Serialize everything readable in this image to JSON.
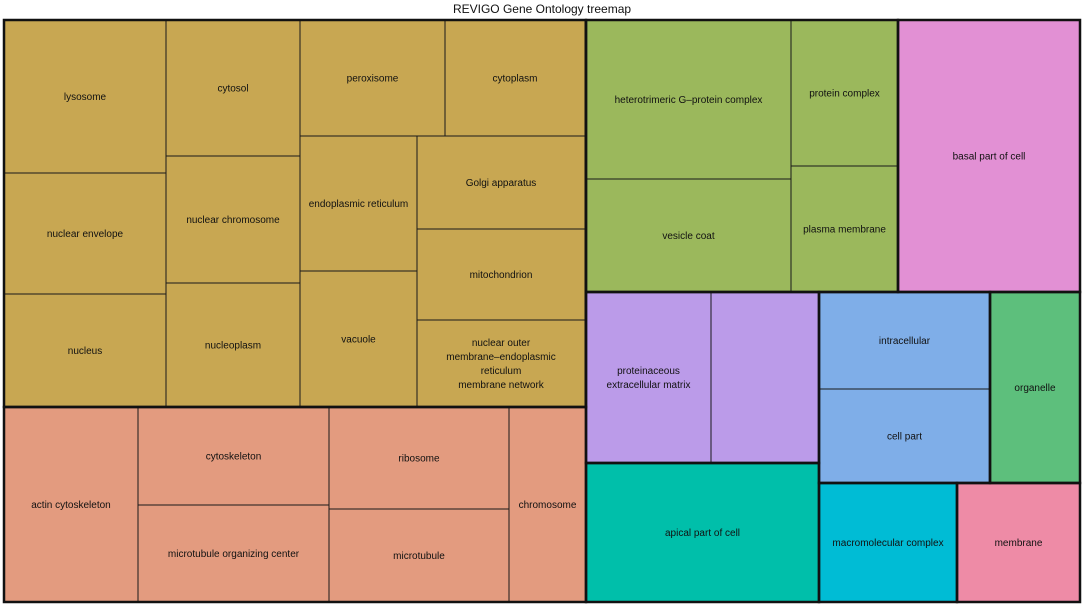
{
  "chart_data": {
    "type": "treemap",
    "title": "REVIGO Gene Ontology treemap",
    "groups": [
      {
        "name": "lysosome",
        "color": "#c8a752",
        "terms": [
          {
            "label": "lysosome",
            "lines": [
              "lysosome"
            ]
          },
          {
            "label": "nuclear envelope",
            "lines": [
              "nuclear envelope"
            ]
          },
          {
            "label": "nucleus",
            "lines": [
              "nucleus"
            ]
          },
          {
            "label": "cytosol",
            "lines": [
              "cytosol"
            ]
          },
          {
            "label": "nuclear chromosome",
            "lines": [
              "nuclear chromosome"
            ]
          },
          {
            "label": "nucleoplasm",
            "lines": [
              "nucleoplasm"
            ]
          },
          {
            "label": "peroxisome",
            "lines": [
              "peroxisome"
            ]
          },
          {
            "label": "cytoplasm",
            "lines": [
              "cytoplasm"
            ]
          },
          {
            "label": "endoplasmic reticulum",
            "lines": [
              "endoplasmic reticulum"
            ]
          },
          {
            "label": "vacuole",
            "lines": [
              "vacuole"
            ]
          },
          {
            "label": "Golgi apparatus",
            "lines": [
              "Golgi apparatus"
            ]
          },
          {
            "label": "mitochondrion",
            "lines": [
              "mitochondrion"
            ]
          },
          {
            "label": "nuclear outer membrane-endoplasmic reticulum membrane network",
            "lines": [
              "nuclear outer",
              "membrane–endoplasmic",
              "reticulum",
              "membrane network"
            ]
          }
        ]
      },
      {
        "name": "actin cytoskeleton",
        "color": "#e39b7f",
        "terms": [
          {
            "label": "actin cytoskeleton",
            "lines": [
              "actin cytoskeleton"
            ]
          },
          {
            "label": "cytoskeleton",
            "lines": [
              "cytoskeleton"
            ]
          },
          {
            "label": "microtubule organizing center",
            "lines": [
              "microtubule organizing center"
            ]
          },
          {
            "label": "ribosome",
            "lines": [
              "ribosome"
            ]
          },
          {
            "label": "microtubule",
            "lines": [
              "microtubule"
            ]
          },
          {
            "label": "chromosome",
            "lines": [
              "chromosome"
            ]
          }
        ]
      },
      {
        "name": "heterotrimeric G-protein complex",
        "color": "#9bb85c",
        "terms": [
          {
            "label": "heterotrimeric G-protein complex",
            "lines": [
              "heterotrimeric G–protein complex"
            ]
          },
          {
            "label": "vesicle coat",
            "lines": [
              "vesicle coat"
            ]
          },
          {
            "label": "protein complex",
            "lines": [
              "protein complex"
            ]
          },
          {
            "label": "plasma membrane",
            "lines": [
              "plasma membrane"
            ]
          }
        ]
      },
      {
        "name": "basal part of cell",
        "color": "#e290d4",
        "terms": [
          {
            "label": "basal part of cell",
            "lines": [
              "basal part of cell"
            ]
          }
        ]
      },
      {
        "name": "proteinaceous extracellular matrix",
        "color": "#bb9be9",
        "terms": [
          {
            "label": "proteinaceous extracellular matrix",
            "lines": [
              "proteinaceous",
              "extracellular matrix"
            ]
          },
          {
            "label": "",
            "lines": []
          }
        ]
      },
      {
        "name": "intracellular",
        "color": "#7faee8",
        "terms": [
          {
            "label": "intracellular",
            "lines": [
              "intracellular"
            ]
          },
          {
            "label": "cell part",
            "lines": [
              "cell part"
            ]
          }
        ]
      },
      {
        "name": "organelle",
        "color": "#5dbf7c",
        "terms": [
          {
            "label": "organelle",
            "lines": [
              "organelle"
            ]
          }
        ]
      },
      {
        "name": "apical part of cell",
        "color": "#00bfaa",
        "terms": [
          {
            "label": "apical part of cell",
            "lines": [
              "apical part of cell"
            ]
          }
        ]
      },
      {
        "name": "macromolecular complex",
        "color": "#00bcd5",
        "terms": [
          {
            "label": "macromolecular complex",
            "lines": [
              "macromolecular complex"
            ]
          }
        ]
      },
      {
        "name": "membrane",
        "color": "#ee8ba6",
        "terms": [
          {
            "label": "membrane",
            "lines": [
              "membrane"
            ]
          }
        ]
      }
    ]
  }
}
